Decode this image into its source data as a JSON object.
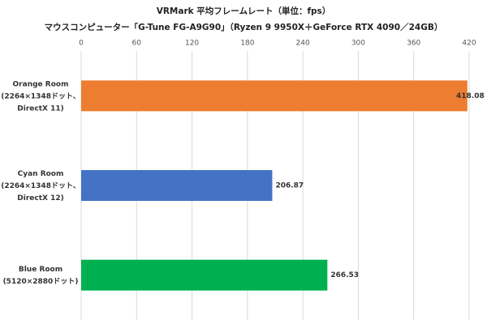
{
  "chart_data": {
    "type": "bar",
    "orientation": "horizontal",
    "title": "VRMark 平均フレームレート（単位：fps）",
    "subtitle": "マウスコンピューター「G-Tune FG-A9G90」（Ryzen 9 9950X＋GeForce RTX 4090／24GB）",
    "categories": [
      [
        "Orange Room",
        "(2264×1348ドット、",
        "DirectX 11)"
      ],
      [
        "Cyan Room",
        "(2264×1348ドット、",
        "DirectX 12)"
      ],
      [
        "Blue Room",
        "(5120×2880ドット)"
      ]
    ],
    "values": [
      418.08,
      206.87,
      266.53
    ],
    "colors": [
      "#ed7d31",
      "#4472c4",
      "#00b050"
    ],
    "xlim": [
      0,
      420
    ],
    "xticks": [
      0,
      60,
      120,
      180,
      240,
      300,
      360,
      420
    ],
    "grid": true
  }
}
